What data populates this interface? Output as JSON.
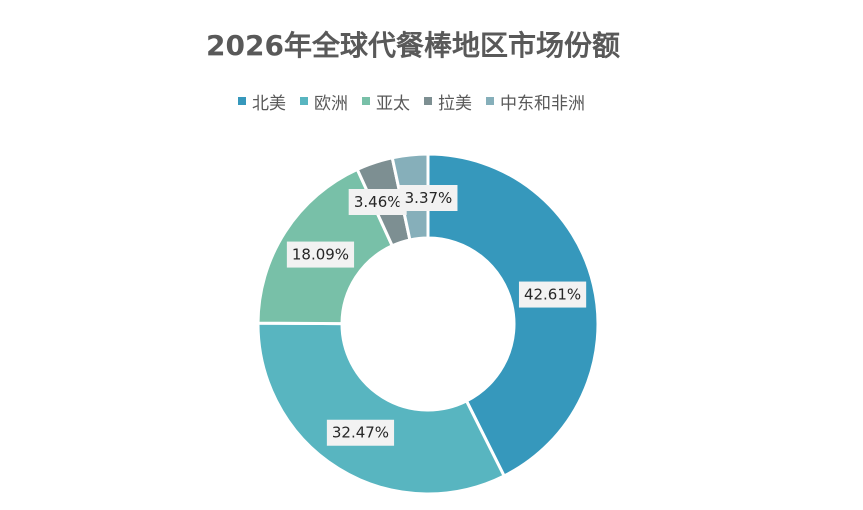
{
  "chart_data": {
    "type": "pie",
    "subtype": "donut",
    "title": "2026年全球代餐棒地区市场份额",
    "categories": [
      "北美",
      "欧洲",
      "亚太",
      "拉美",
      "中东和非洲"
    ],
    "values": [
      42.61,
      32.47,
      18.09,
      3.46,
      3.37
    ],
    "value_labels": [
      "42.61%",
      "32.47%",
      "18.09%",
      "3.46%",
      "3.37%"
    ],
    "colors": [
      "#3698BC",
      "#58B5C0",
      "#78C0A8",
      "#7D8F92",
      "#86AFBA"
    ],
    "legend_position": "top"
  }
}
